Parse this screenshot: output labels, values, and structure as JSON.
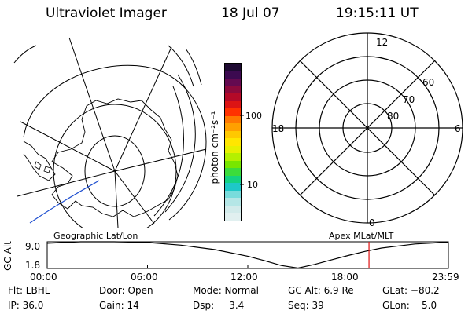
{
  "header": {
    "title": "Ultraviolet Imager",
    "date": "18 Jul 07",
    "time": "19:15:11 UT"
  },
  "colorbar": {
    "unit_label": "photon cm⁻²s⁻¹",
    "ticks": [
      "100",
      "10"
    ],
    "colors": [
      "#1e0a32",
      "#3c0a50",
      "#640a50",
      "#8c0a3c",
      "#b40a28",
      "#dc1414",
      "#ff3200",
      "#ff7800",
      "#ffa000",
      "#ffc800",
      "#ffe600",
      "#e6f000",
      "#b4f000",
      "#78e600",
      "#3cdc3c",
      "#14d282",
      "#1ec8c8",
      "#78dcdc",
      "#b4e6e6",
      "#d2ebeb",
      "#e1f0f0"
    ]
  },
  "polar_plot": {
    "clock_labels": [
      "12",
      "18",
      "6",
      "0"
    ],
    "lat_labels": [
      "60",
      "70",
      "80"
    ]
  },
  "timeline": {
    "left_label": "Geographic Lat/Lon",
    "right_label": "Apex MLat/MLT",
    "axis_title": "GC Alt",
    "y_ticks": [
      "9.0",
      "1.8"
    ],
    "time_ticks": [
      "00:00",
      "06:00",
      "12:00",
      "18:00",
      "23:59"
    ],
    "current_time_color": "#e01010"
  },
  "chart_data": {
    "type": "line",
    "title": "",
    "xlabel": "",
    "ylabel": "GC Alt",
    "x_unit": "hours UT",
    "xlim": [
      0,
      24
    ],
    "ylim": [
      1.8,
      9.0
    ],
    "x": [
      0,
      2,
      4,
      6,
      8,
      10,
      12,
      13,
      14,
      15,
      16,
      17,
      18,
      19,
      20,
      22,
      24
    ],
    "y": [
      8.6,
      9.0,
      9.0,
      8.8,
      8.1,
      6.9,
      5.1,
      3.9,
      2.6,
      1.9,
      2.9,
      4.1,
      5.3,
      6.4,
      7.3,
      8.4,
      8.9
    ],
    "current_time": 19.25
  },
  "status": {
    "row1": {
      "filter": "Flt: LBHL",
      "door": "Door: Open",
      "mode": "Mode: Normal",
      "gc_alt": "GC Alt: 6.9 Re",
      "glat": "GLat: −80.2"
    },
    "row2": {
      "ip": "IP: 36.0",
      "gain": "Gain: 14",
      "dsp": "Dsp:     3.4",
      "seq": "Seq: 39",
      "glon": "GLon:    5.0"
    }
  }
}
